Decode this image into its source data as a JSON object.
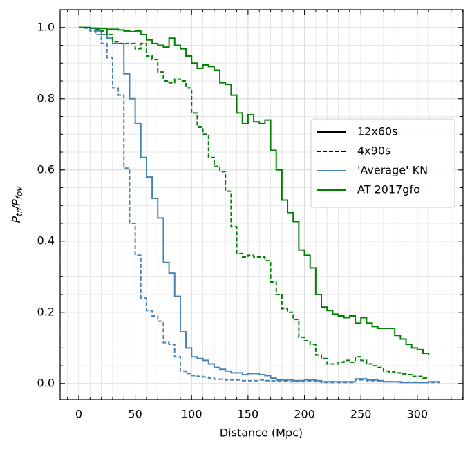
{
  "chart_data": {
    "type": "step",
    "xlabel": "Distance (Mpc)",
    "ylabel_parts": [
      "P",
      "tr",
      "/P",
      "fov"
    ],
    "xlim": [
      -16.5,
      340.5
    ],
    "ylim": [
      -0.045,
      1.05
    ],
    "xticks": [
      0,
      50,
      100,
      150,
      200,
      250,
      300
    ],
    "yticks": [
      {
        "value": 0,
        "label": "0.0"
      },
      {
        "value": 0.2,
        "label": "0.2"
      },
      {
        "value": 0.4,
        "label": "0.4"
      },
      {
        "value": 0.6,
        "label": "0.6"
      },
      {
        "value": 0.8,
        "label": "0.8"
      },
      {
        "value": 1,
        "label": "1.0"
      }
    ],
    "grid": true,
    "legend_position": "center right",
    "legend": [
      {
        "label": "12x60s",
        "color": "#000000",
        "linestyle": "solid"
      },
      {
        "label": "4x90s",
        "color": "#000000",
        "linestyle": "dashed"
      },
      {
        "label": "'Average' KN",
        "color": "#4682b4",
        "linestyle": "solid"
      },
      {
        "label": "AT 2017gfo",
        "color": "#008000",
        "linestyle": "solid"
      }
    ],
    "x": [
      0,
      5,
      10,
      15,
      20,
      25,
      30,
      35,
      40,
      45,
      50,
      55,
      60,
      65,
      70,
      75,
      80,
      85,
      90,
      95,
      100,
      105,
      110,
      115,
      120,
      125,
      130,
      135,
      140,
      145,
      150,
      155,
      160,
      165,
      170,
      175,
      180,
      185,
      190,
      195,
      200,
      205,
      210,
      215,
      220,
      225,
      230,
      235,
      240,
      245,
      250,
      255,
      260,
      265,
      270,
      275,
      280,
      285,
      290,
      295,
      300,
      305,
      310,
      315,
      320
    ],
    "series": [
      {
        "color": "#4682b4",
        "linestyle": "solid",
        "values": [
          1.0,
          1.0,
          0.998,
          0.99,
          0.98,
          0.97,
          0.955,
          0.955,
          0.87,
          0.8,
          0.73,
          0.635,
          0.58,
          0.52,
          0.465,
          0.34,
          0.31,
          0.245,
          0.145,
          0.1,
          0.075,
          0.07,
          0.065,
          0.055,
          0.045,
          0.04,
          0.035,
          0.03,
          0.03,
          0.025,
          0.028,
          0.028,
          0.025,
          0.022,
          0.015,
          0.01,
          0.01,
          0.01,
          0.008,
          0.008,
          0.01,
          0.01,
          0.008,
          0.005,
          0.005,
          0.005,
          0.005,
          0.005,
          0.005,
          0.013,
          0.013,
          0.01,
          0.01,
          0.008,
          0.005,
          0.005,
          0.005,
          0.003,
          0.003,
          0.003,
          0.003,
          0.003,
          0.005,
          0.005,
          0.005
        ]
      },
      {
        "color": "#4682b4",
        "linestyle": "dashed",
        "values": [
          1.0,
          0.998,
          0.99,
          0.98,
          0.955,
          0.915,
          0.83,
          0.81,
          0.605,
          0.45,
          0.36,
          0.24,
          0.205,
          0.19,
          0.175,
          0.115,
          0.11,
          0.075,
          0.035,
          0.028,
          0.022,
          0.02,
          0.018,
          0.015,
          0.012,
          0.012,
          0.01,
          0.01,
          0.01,
          0.008,
          0.008,
          0.008,
          0.01,
          0.008,
          0.007,
          0.007,
          0.007,
          0.005,
          0.005,
          0.005,
          0.007,
          0.007,
          0.005,
          0.003,
          0.003,
          0.003,
          0.003,
          0.003,
          0.003,
          0.01,
          0.01,
          0.008,
          0.008,
          0.006,
          0.005,
          0.005,
          0.005,
          0.004,
          0.004,
          0.004,
          0.003,
          0.003,
          0.003,
          0.003,
          0.003
        ]
      },
      {
        "color": "#008000",
        "linestyle": "solid",
        "values": [
          1.0,
          1.0,
          0.998,
          0.998,
          0.997,
          0.995,
          0.995,
          0.993,
          0.99,
          0.988,
          0.99,
          0.98,
          0.965,
          0.955,
          0.95,
          0.945,
          0.97,
          0.95,
          0.94,
          0.92,
          0.9,
          0.885,
          0.895,
          0.89,
          0.88,
          0.845,
          0.84,
          0.81,
          0.76,
          0.73,
          0.755,
          0.735,
          0.73,
          0.74,
          0.655,
          0.6,
          0.515,
          0.48,
          0.455,
          0.375,
          0.36,
          0.325,
          0.25,
          0.215,
          0.205,
          0.195,
          0.19,
          0.185,
          0.19,
          0.17,
          0.185,
          0.17,
          0.16,
          0.155,
          0.155,
          0.155,
          0.135,
          0.125,
          0.11,
          0.1,
          0.095,
          0.085,
          0.08,
          null,
          null
        ]
      },
      {
        "color": "#008000",
        "linestyle": "dashed",
        "values": [
          1.0,
          1.0,
          0.998,
          0.995,
          0.99,
          0.98,
          0.96,
          0.955,
          0.955,
          0.955,
          0.94,
          0.955,
          0.92,
          0.91,
          0.875,
          0.85,
          0.845,
          0.855,
          0.85,
          0.83,
          0.76,
          0.72,
          0.7,
          0.635,
          0.61,
          0.595,
          0.54,
          0.44,
          0.365,
          0.355,
          0.36,
          0.355,
          0.355,
          0.345,
          0.285,
          0.25,
          0.21,
          0.2,
          0.18,
          0.13,
          0.12,
          0.11,
          0.08,
          0.07,
          0.055,
          0.055,
          0.06,
          0.065,
          0.06,
          0.075,
          0.065,
          0.055,
          0.05,
          0.045,
          0.035,
          0.033,
          0.03,
          0.027,
          0.025,
          0.02,
          0.02,
          0.015,
          0.015,
          null,
          null
        ]
      }
    ]
  }
}
